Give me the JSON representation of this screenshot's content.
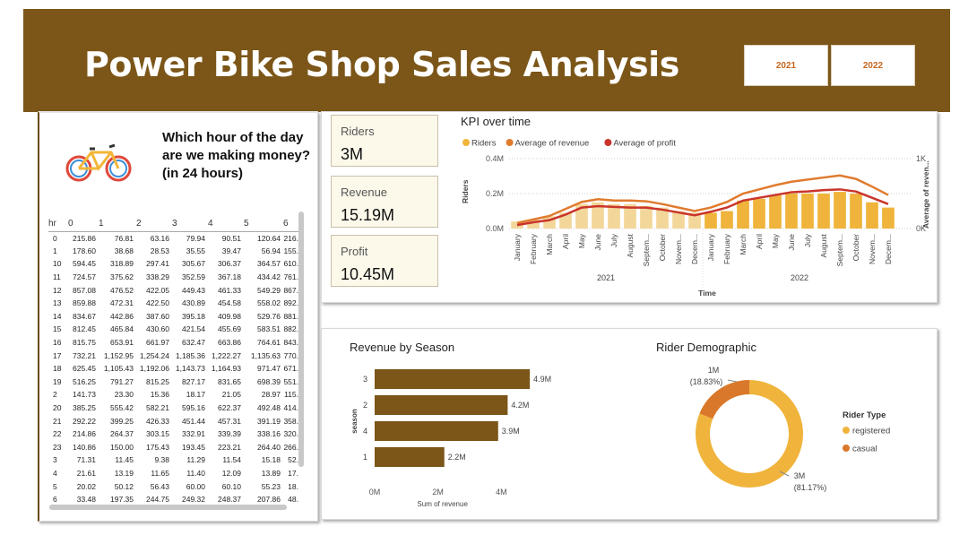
{
  "header": {
    "title": "Power Bike Shop Sales Analysis",
    "year_buttons": [
      "2021",
      "2022"
    ]
  },
  "colors": {
    "header_bg": "#7b5618",
    "riders": "#f0b43c",
    "avg_revenue": "#e07b2e",
    "avg_profit": "#c9352b",
    "season_bar": "#7b5618",
    "donut_registered": "#f0b43c",
    "donut_casual": "#d9782a"
  },
  "hour_matrix": {
    "question": "Which hour of the day are we making money? (in 24 hours)",
    "columns": [
      "hr",
      "0",
      "1",
      "2",
      "3",
      "4",
      "5",
      "6"
    ],
    "rows": [
      [
        "0",
        "215.86",
        "76.81",
        "63.16",
        "79.94",
        "90.51",
        "120.64",
        "216."
      ],
      [
        "1",
        "178.60",
        "38.68",
        "28.53",
        "35.55",
        "39.47",
        "56.94",
        "155."
      ],
      [
        "10",
        "594.45",
        "318.89",
        "297.41",
        "305.67",
        "306.37",
        "364.57",
        "610."
      ],
      [
        "11",
        "724.57",
        "375.62",
        "338.29",
        "352.59",
        "367.18",
        "434.42",
        "761."
      ],
      [
        "12",
        "857.08",
        "476.52",
        "422.05",
        "449.43",
        "461.33",
        "549.29",
        "867."
      ],
      [
        "13",
        "859.88",
        "472.31",
        "422.50",
        "430.89",
        "454.58",
        "558.02",
        "892."
      ],
      [
        "14",
        "834.67",
        "442.86",
        "387.60",
        "395.18",
        "409.98",
        "529.76",
        "881."
      ],
      [
        "15",
        "812.45",
        "465.84",
        "430.60",
        "421.54",
        "455.69",
        "583.51",
        "882."
      ],
      [
        "16",
        "815.75",
        "653.91",
        "661.97",
        "632.47",
        "663.86",
        "764.61",
        "843."
      ],
      [
        "17",
        "732.21",
        "1,152.95",
        "1,254.24",
        "1,185.36",
        "1,222.27",
        "1,135.63",
        "770."
      ],
      [
        "18",
        "625.45",
        "1,105.43",
        "1,192.06",
        "1,143.73",
        "1,164.93",
        "971.47",
        "671."
      ],
      [
        "19",
        "516.25",
        "791.27",
        "815.25",
        "827.17",
        "831.65",
        "698.39",
        "551."
      ],
      [
        "2",
        "141.73",
        "23.30",
        "15.36",
        "18.17",
        "21.05",
        "28.97",
        "115."
      ],
      [
        "20",
        "385.25",
        "555.42",
        "582.21",
        "595.16",
        "622.37",
        "492.48",
        "414."
      ],
      [
        "21",
        "292.22",
        "399.25",
        "426.33",
        "451.44",
        "457.31",
        "391.19",
        "358."
      ],
      [
        "22",
        "214.86",
        "264.37",
        "303.15",
        "332.91",
        "339.39",
        "338.16",
        "320."
      ],
      [
        "23",
        "140.86",
        "150.00",
        "175.43",
        "193.45",
        "223.21",
        "264.40",
        "266."
      ],
      [
        "3",
        "71.31",
        "11.45",
        "9.38",
        "11.29",
        "11.54",
        "15.18",
        "52."
      ],
      [
        "4",
        "21.61",
        "13.19",
        "11.65",
        "11.40",
        "12.09",
        "13.89",
        "17."
      ],
      [
        "5",
        "20.02",
        "50.12",
        "56.43",
        "60.00",
        "60.10",
        "55.23",
        "18."
      ],
      [
        "6",
        "33.48",
        "197.35",
        "244.75",
        "249.32",
        "248.37",
        "207.86",
        "48."
      ]
    ]
  },
  "kpis": [
    {
      "label": "Riders",
      "value": "3M"
    },
    {
      "label": "Revenue",
      "value": "15.19M"
    },
    {
      "label": "Profit",
      "value": "10.45M"
    }
  ],
  "chart_data": [
    {
      "type": "bar",
      "title": "KPI over time",
      "legend": [
        "Riders",
        "Average of revenue",
        "Average of profit"
      ],
      "legend_position": "top-left",
      "xlabel": "Time",
      "ylabel": "Riders",
      "y2label": "Average of reven...",
      "ylim": [
        0,
        0.4
      ],
      "y_ticks": [
        "0.0M",
        "0.2M",
        "0.4M"
      ],
      "y2_ticks": [
        "0K",
        "1K"
      ],
      "year_labels": [
        "2021",
        "2022"
      ],
      "categories": [
        "January",
        "February",
        "March",
        "April",
        "May",
        "June",
        "July",
        "August",
        "Septem...",
        "October",
        "Novem...",
        "Decem...",
        "January",
        "February",
        "March",
        "April",
        "May",
        "June",
        "July",
        "August",
        "Septem...",
        "October",
        "Novem...",
        "Decem..."
      ],
      "series": [
        {
          "name": "Riders",
          "type": "bar",
          "values": [
            0.04,
            0.05,
            0.07,
            0.09,
            0.14,
            0.15,
            0.14,
            0.14,
            0.13,
            0.12,
            0.1,
            0.09,
            0.09,
            0.1,
            0.16,
            0.17,
            0.19,
            0.2,
            0.2,
            0.2,
            0.21,
            0.2,
            0.15,
            0.12
          ]
        },
        {
          "name": "Average of revenue",
          "type": "line",
          "axis": "y2",
          "values": [
            0.08,
            0.13,
            0.18,
            0.28,
            0.38,
            0.42,
            0.4,
            0.4,
            0.39,
            0.35,
            0.3,
            0.25,
            0.3,
            0.38,
            0.5,
            0.56,
            0.62,
            0.67,
            0.7,
            0.73,
            0.76,
            0.71,
            0.6,
            0.48
          ]
        },
        {
          "name": "Average of profit",
          "type": "line",
          "axis": "y2",
          "values": [
            0.05,
            0.09,
            0.12,
            0.2,
            0.3,
            0.32,
            0.31,
            0.3,
            0.3,
            0.27,
            0.23,
            0.19,
            0.24,
            0.3,
            0.4,
            0.44,
            0.48,
            0.52,
            0.53,
            0.55,
            0.56,
            0.53,
            0.44,
            0.35
          ]
        }
      ],
      "grid": true
    },
    {
      "type": "bar",
      "orientation": "horizontal",
      "title": "Revenue by Season",
      "xlabel": "Sum of revenue",
      "ylabel": "season",
      "categories": [
        "3",
        "2",
        "4",
        "1"
      ],
      "values": [
        4.9,
        4.2,
        3.9,
        2.2
      ],
      "data_labels": [
        "4.9M",
        "4.2M",
        "3.9M",
        "2.2M"
      ],
      "x_ticks": [
        "0M",
        "2M",
        "4M"
      ],
      "xlim": [
        0,
        6
      ]
    },
    {
      "type": "pie",
      "donut": true,
      "title": "Rider Demographic",
      "legend_title": "Rider Type",
      "legend_position": "right",
      "categories": [
        "registered",
        "casual"
      ],
      "values": [
        81.17,
        18.83
      ],
      "value_labels": [
        "3M",
        "1M"
      ],
      "pct_labels": [
        "(81.17%)",
        "(18.83%)"
      ]
    }
  ]
}
